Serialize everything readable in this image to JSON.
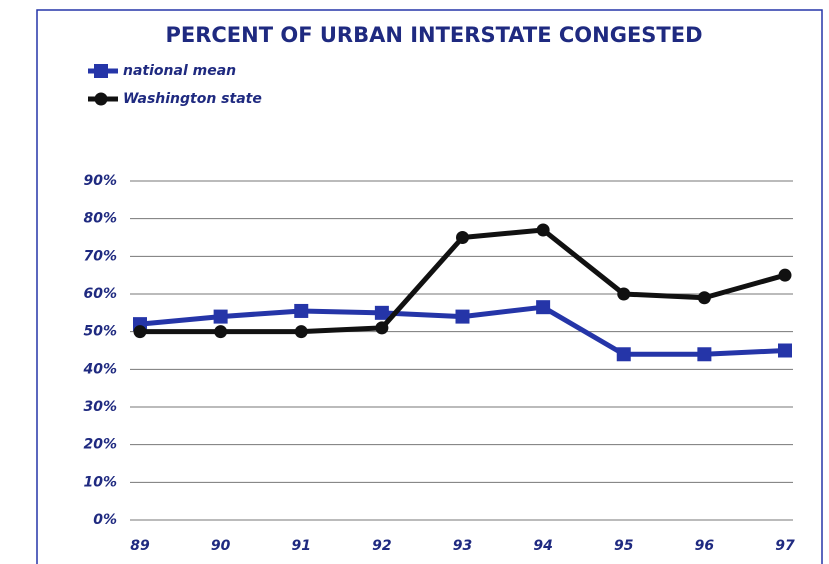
{
  "chart_data": {
    "type": "line",
    "title": "PERCENT OF URBAN INTERSTATE CONGESTED",
    "categories": [
      "89",
      "90",
      "91",
      "92",
      "93",
      "94",
      "95",
      "96",
      "97"
    ],
    "series": [
      {
        "name": "national mean",
        "color": "#2535a8",
        "marker": "square",
        "values": [
          52,
          54,
          55.5,
          55,
          54,
          56.5,
          44,
          44,
          45
        ]
      },
      {
        "name": "Washington state",
        "color": "#111111",
        "marker": "circle",
        "values": [
          50,
          50,
          50,
          51,
          75,
          77,
          60,
          59,
          65
        ]
      }
    ],
    "ylim": [
      0,
      90
    ],
    "yticks": [
      {
        "value": 0,
        "label": "0%"
      },
      {
        "value": 10,
        "label": "10%"
      },
      {
        "value": 20,
        "label": "20%"
      },
      {
        "value": 30,
        "label": "30%"
      },
      {
        "value": 40,
        "label": "40%"
      },
      {
        "value": 50,
        "label": "50%"
      },
      {
        "value": 60,
        "label": "60%"
      },
      {
        "value": 70,
        "label": "70%"
      },
      {
        "value": 80,
        "label": "80%"
      },
      {
        "value": 90,
        "label": "90%"
      }
    ],
    "grid": true
  }
}
